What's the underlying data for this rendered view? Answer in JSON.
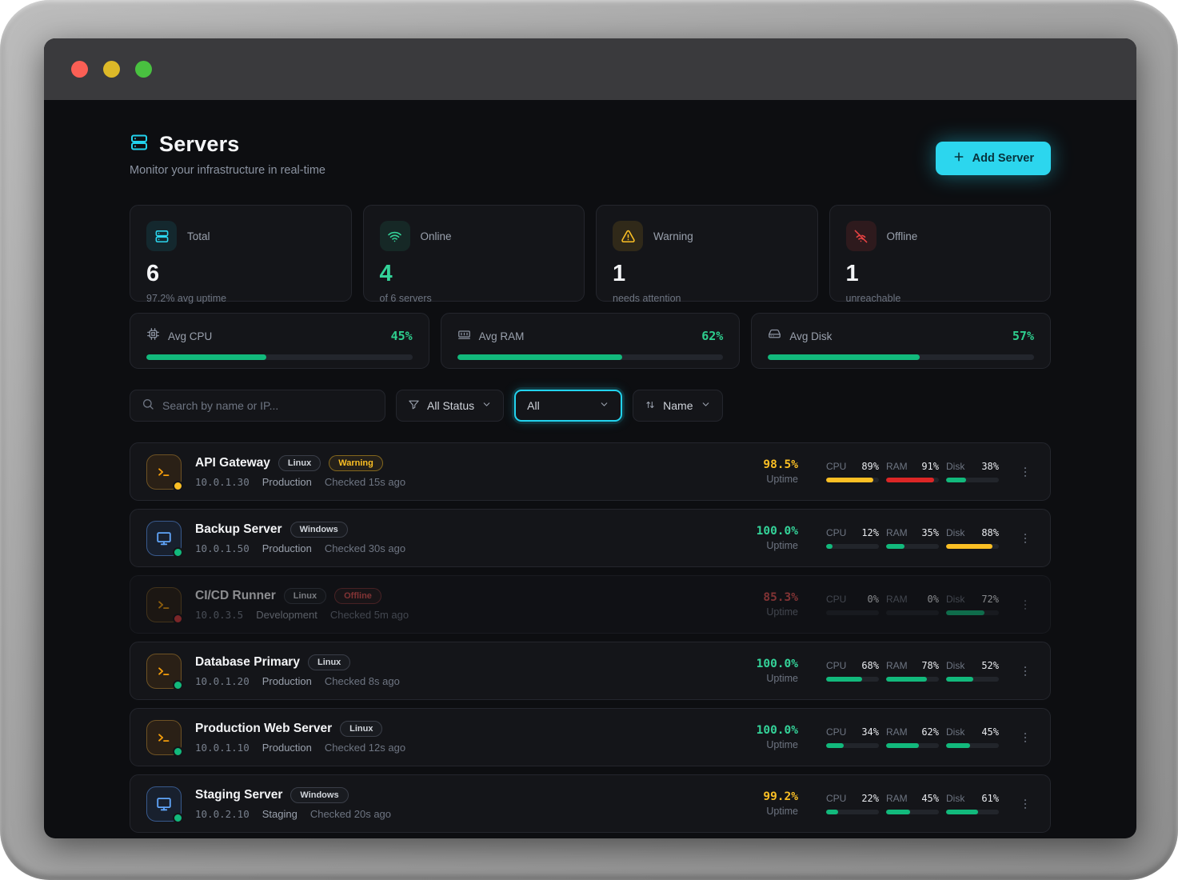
{
  "colors": {
    "accent": "#22d3ee",
    "green": "#12b97c",
    "green_text": "#34d399",
    "yellow": "#fbbf24",
    "red": "#dc2626",
    "red_text": "#e05252"
  },
  "icons": {
    "brand": "servers-icon",
    "total": "servers-icon",
    "online": "wifi-icon",
    "warning": "warning-triangle-icon",
    "offline": "wifi-off-icon",
    "cpu": "cpu-icon",
    "ram": "ram-icon",
    "disk": "hard-drive-icon",
    "search": "search-icon",
    "filter": "funnel-icon",
    "sort": "sort-arrows-icon",
    "linux_server": "terminal-icon",
    "windows_server": "monitor-icon",
    "row_menu": "kebab-menu-icon",
    "add": "plus-icon"
  },
  "window": {
    "buttons": [
      "close",
      "minimize",
      "maximize"
    ]
  },
  "header": {
    "title": "Servers",
    "subtitle": "Monitor your infrastructure in real-time",
    "add_button": "Add Server"
  },
  "stats": [
    {
      "label": "Total",
      "value": "6",
      "sub": "97.2% avg uptime"
    },
    {
      "label": "Online",
      "value": "4",
      "sub": "of 6 servers"
    },
    {
      "label": "Warning",
      "value": "1",
      "sub": "needs attention"
    },
    {
      "label": "Offline",
      "value": "1",
      "sub": "unreachable"
    }
  ],
  "averages": [
    {
      "label": "Avg CPU",
      "value": "45%",
      "bar": {
        "pct": 45,
        "color": "#12b97c"
      }
    },
    {
      "label": "Avg RAM",
      "value": "62%",
      "bar": {
        "pct": 62,
        "color": "#12b97c"
      }
    },
    {
      "label": "Avg Disk",
      "value": "57%",
      "bar": {
        "pct": 57,
        "color": "#12b97c"
      }
    }
  ],
  "toolbar": {
    "search_placeholder": "Search by name or IP...",
    "status_filter": "All Status",
    "os_filter": "All",
    "sort_by": "Name"
  },
  "labels": {
    "uptime": "Uptime"
  },
  "servers": [
    {
      "name": "API Gateway",
      "os": "Linux",
      "status_badge": "Warning",
      "ip": "10.0.1.30",
      "env": "Production",
      "checked": "Checked 15s ago",
      "uptime": "98.5%",
      "uptime_color": "#fbbf24",
      "cpu": {
        "label": "CPU",
        "value": "89%",
        "pct": 89,
        "color": "#fbbf24"
      },
      "ram": {
        "label": "RAM",
        "value": "91%",
        "pct": 91,
        "color": "#dc2626"
      },
      "disk": {
        "label": "Disk",
        "value": "38%",
        "pct": 38,
        "color": "#12b97c"
      }
    },
    {
      "name": "Backup Server",
      "os": "Windows",
      "status_badge": "",
      "ip": "10.0.1.50",
      "env": "Production",
      "checked": "Checked 30s ago",
      "uptime": "100.0%",
      "uptime_color": "#34d399",
      "cpu": {
        "label": "CPU",
        "value": "12%",
        "pct": 12,
        "color": "#12b97c"
      },
      "ram": {
        "label": "RAM",
        "value": "35%",
        "pct": 35,
        "color": "#12b97c"
      },
      "disk": {
        "label": "Disk",
        "value": "88%",
        "pct": 88,
        "color": "#fbbf24"
      }
    },
    {
      "name": "CI/CD Runner",
      "os": "Linux",
      "status_badge": "Offline",
      "ip": "10.0.3.5",
      "env": "Development",
      "checked": "Checked 5m ago",
      "uptime": "85.3%",
      "uptime_color": "#e05252",
      "cpu": {
        "label": "CPU",
        "value": "0%",
        "pct": 0,
        "color": "#12b97c"
      },
      "ram": {
        "label": "RAM",
        "value": "0%",
        "pct": 0,
        "color": "#12b97c"
      },
      "disk": {
        "label": "Disk",
        "value": "72%",
        "pct": 72,
        "color": "#12b97c"
      }
    },
    {
      "name": "Database Primary",
      "os": "Linux",
      "status_badge": "",
      "ip": "10.0.1.20",
      "env": "Production",
      "checked": "Checked 8s ago",
      "uptime": "100.0%",
      "uptime_color": "#34d399",
      "cpu": {
        "label": "CPU",
        "value": "68%",
        "pct": 68,
        "color": "#12b97c"
      },
      "ram": {
        "label": "RAM",
        "value": "78%",
        "pct": 78,
        "color": "#12b97c"
      },
      "disk": {
        "label": "Disk",
        "value": "52%",
        "pct": 52,
        "color": "#12b97c"
      }
    },
    {
      "name": "Production Web Server",
      "os": "Linux",
      "status_badge": "",
      "ip": "10.0.1.10",
      "env": "Production",
      "checked": "Checked 12s ago",
      "uptime": "100.0%",
      "uptime_color": "#34d399",
      "cpu": {
        "label": "CPU",
        "value": "34%",
        "pct": 34,
        "color": "#12b97c"
      },
      "ram": {
        "label": "RAM",
        "value": "62%",
        "pct": 62,
        "color": "#12b97c"
      },
      "disk": {
        "label": "Disk",
        "value": "45%",
        "pct": 45,
        "color": "#12b97c"
      }
    },
    {
      "name": "Staging Server",
      "os": "Windows",
      "status_badge": "",
      "ip": "10.0.2.10",
      "env": "Staging",
      "checked": "Checked 20s ago",
      "uptime": "99.2%",
      "uptime_color": "#fbbf24",
      "cpu": {
        "label": "CPU",
        "value": "22%",
        "pct": 22,
        "color": "#12b97c"
      },
      "ram": {
        "label": "RAM",
        "value": "45%",
        "pct": 45,
        "color": "#12b97c"
      },
      "disk": {
        "label": "Disk",
        "value": "61%",
        "pct": 61,
        "color": "#12b97c"
      }
    }
  ]
}
